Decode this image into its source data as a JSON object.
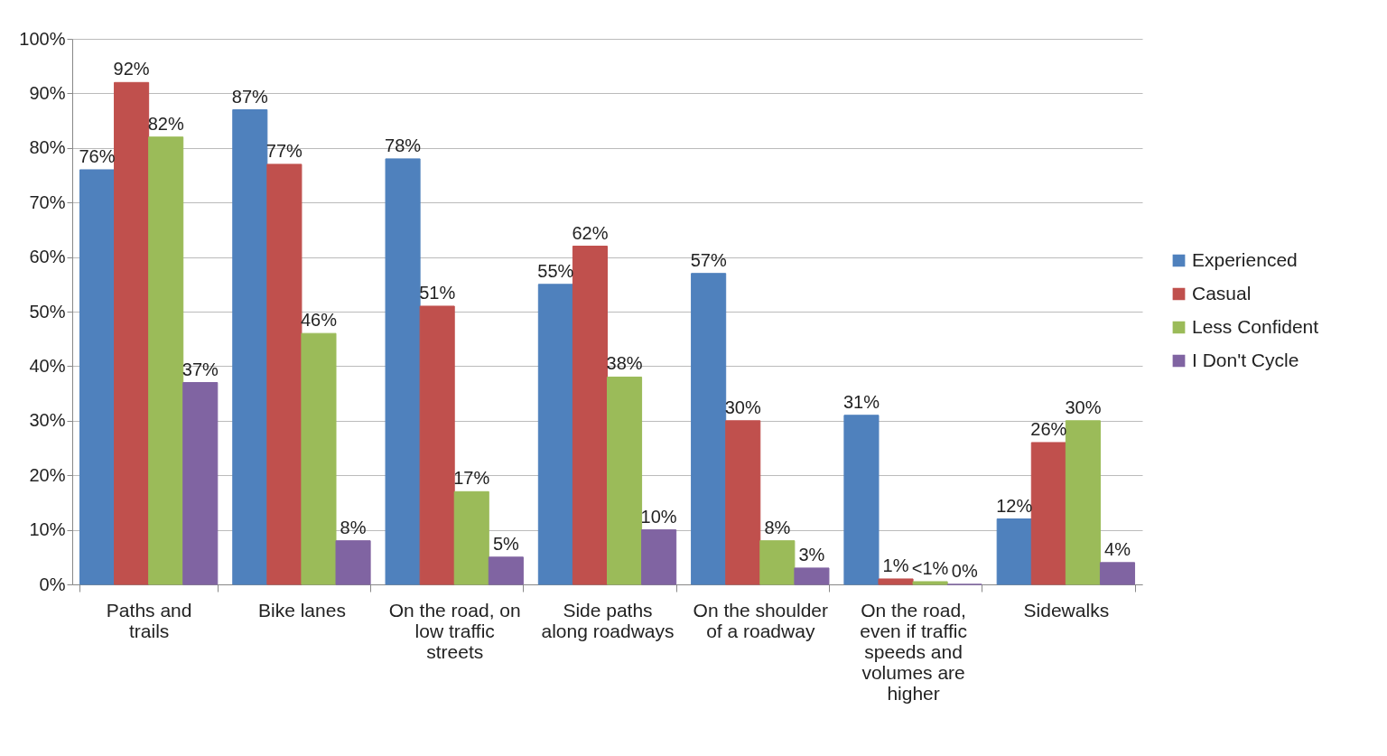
{
  "chart_data": {
    "type": "bar",
    "categories": [
      "Paths and trails",
      "Bike lanes",
      "On the road, on low traffic streets",
      "Side paths along roadways",
      "On the shoulder of a roadway",
      "On the road, even if traffic speeds and volumes are higher",
      "Sidewalks"
    ],
    "series": [
      {
        "name": "Experienced",
        "color": "#4f81bd",
        "values": [
          76,
          87,
          78,
          55,
          57,
          31,
          12
        ],
        "value_labels": [
          "76%",
          "87%",
          "78%",
          "55%",
          "57%",
          "31%",
          "12%"
        ]
      },
      {
        "name": "Casual",
        "color": "#c0504d",
        "values": [
          92,
          77,
          51,
          62,
          30,
          1,
          26
        ],
        "value_labels": [
          "92%",
          "77%",
          "51%",
          "62%",
          "30%",
          "1%",
          "26%"
        ]
      },
      {
        "name": "Less Confident",
        "color": "#9bbb59",
        "values": [
          82,
          46,
          17,
          38,
          8,
          0.5,
          30
        ],
        "value_labels": [
          "82%",
          "46%",
          "17%",
          "38%",
          "8%",
          "<1%",
          "30%"
        ]
      },
      {
        "name": "I Don't Cycle",
        "color": "#8064a2",
        "values": [
          37,
          8,
          5,
          10,
          3,
          0,
          4
        ],
        "value_labels": [
          "37%",
          "8%",
          "5%",
          "10%",
          "3%",
          "0%",
          "4%"
        ]
      }
    ],
    "ylim": [
      0,
      100
    ],
    "yticks": [
      {
        "value": 0,
        "label": "0%"
      },
      {
        "value": 10,
        "label": "10%"
      },
      {
        "value": 20,
        "label": "20%"
      },
      {
        "value": 30,
        "label": "30%"
      },
      {
        "value": 40,
        "label": "40%"
      },
      {
        "value": 50,
        "label": "50%"
      },
      {
        "value": 60,
        "label": "60%"
      },
      {
        "value": 70,
        "label": "70%"
      },
      {
        "value": 80,
        "label": "80%"
      },
      {
        "value": 90,
        "label": "90%"
      },
      {
        "value": 100,
        "label": "100%"
      }
    ],
    "grid": "y",
    "legend": "right"
  }
}
